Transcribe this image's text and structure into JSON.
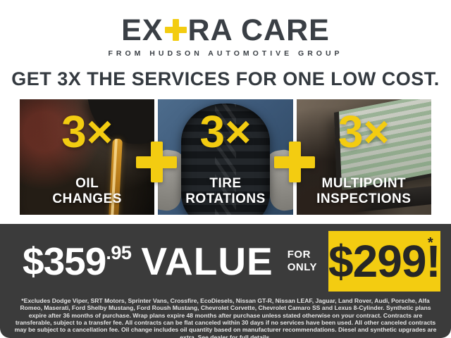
{
  "brand": {
    "name_prefix": "EX",
    "name_suffix": "RA CARE",
    "tagline": "FROM HUDSON AUTOMOTIVE GROUP"
  },
  "headline": "GET 3X THE SERVICES FOR ONE LOW COST.",
  "services": [
    {
      "multiplier": "3×",
      "label_line1": "OIL",
      "label_line2": "CHANGES"
    },
    {
      "multiplier": "3×",
      "label_line1": "TIRE",
      "label_line2": "ROTATIONS"
    },
    {
      "multiplier": "3×",
      "label_line1": "MULTIPOINT",
      "label_line2": "INSPECTIONS"
    }
  ],
  "pricing": {
    "value_dollars": "$359",
    "value_cents": ".95",
    "value_word": "VALUE",
    "for_line1": "FOR",
    "for_line2": "ONLY",
    "sale_price": "$299!",
    "sale_asterisk": "*"
  },
  "disclaimer": "*Excludes Dodge Viper, SRT Motors, Sprinter Vans, Crossfire, EcoDiesels, Nissan GT-R, Nissan LEAF, Jaguar, Land Rover, Audi, Porsche, Alfa Romeo, Maserati, Ford Shelby Mustang, Ford Roush Mustang, Chevrolet Corvette, Chevrolet Camaro SS and Lexus 8-Cylinder. Synthetic plans expire after 36 months of purchase. Wrap plans expire 48 months after purchase unless stated otherwise on your contract. Contracts are transferable, subject to a transfer fee. All contracts can be flat canceled within 30 days if no services have been used. All other canceled contracts may be subject to a cancellation fee. Oil change includes oil quantity based on manufacturer recommendations. Diesel and synthetic upgrades are extra. See dealer for full details.",
  "colors": {
    "accent_yellow": "#F3CC11",
    "dark_band": "#3B3B3B",
    "text_dark": "#3A3F45",
    "text_white": "#FFFFFF"
  }
}
